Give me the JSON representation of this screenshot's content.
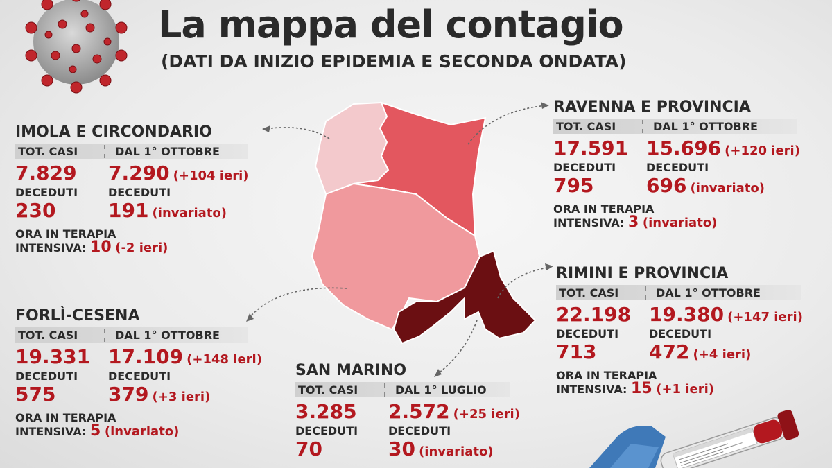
{
  "title": "La mappa del contagio",
  "subtitle": "(DATI DA INIZIO EPIDEMIA E SECONDA ONDATA)",
  "imola": {
    "name": "IMOLA E CIRCONDARIO",
    "h1": "TOT. CASI",
    "h2": "DAL 1° OTTOBRE",
    "tot": "7.829",
    "since": "7.290",
    "since_delta": "(+104 ieri)",
    "dec_l1": "DECEDUTI",
    "dec_l2": "DECEDUTI",
    "dec_tot": "230",
    "dec_since": "191",
    "dec_delta": "(invariato)",
    "ti_l1": "ORA IN TERAPIA",
    "ti_l2": "INTENSIVA:",
    "ti_v": "10",
    "ti_d": "(-2 ieri)"
  },
  "forli": {
    "name": "FORLÌ-CESENA",
    "h1": "TOT. CASI",
    "h2": "DAL 1° OTTOBRE",
    "tot": "19.331",
    "since": "17.109",
    "since_delta": "(+148 ieri)",
    "dec_l1": "DECEDUTI",
    "dec_l2": "DECEDUTI",
    "dec_tot": "575",
    "dec_since": "379",
    "dec_delta": "(+3 ieri)",
    "ti_l1": "ORA IN TERAPIA",
    "ti_l2": "INTENSIVA:",
    "ti_v": "5",
    "ti_d": "(invariato)"
  },
  "sanmarino": {
    "name": "SAN MARINO",
    "h1": "TOT. CASI",
    "h2": "DAL 1° LUGLIO",
    "tot": "3.285",
    "since": "2.572",
    "since_delta": "(+25 ieri)",
    "dec_l1": "DECEDUTI",
    "dec_l2": "DECEDUTI",
    "dec_tot": "70",
    "dec_since": "30",
    "dec_delta": "(invariato)"
  },
  "ravenna": {
    "name": "RAVENNA E PROVINCIA",
    "h1": "TOT. CASI",
    "h2": "DAL 1° OTTOBRE",
    "tot": "17.591",
    "since": "15.696",
    "since_delta": "(+120 ieri)",
    "dec_l1": "DECEDUTI",
    "dec_l2": "DECEDUTI",
    "dec_tot": "795",
    "dec_since": "696",
    "dec_delta": "(invariato)",
    "ti_l1": "ORA IN TERAPIA",
    "ti_l2": "INTENSIVA:",
    "ti_v": "3",
    "ti_d": "(invariato)"
  },
  "rimini": {
    "name": "RIMINI E PROVINCIA",
    "h1": "TOT. CASI",
    "h2": "DAL 1° OTTOBRE",
    "tot": "22.198",
    "since": "19.380",
    "since_delta": "(+147 ieri)",
    "dec_l1": "DECEDUTI",
    "dec_l2": "DECEDUTI",
    "dec_tot": "713",
    "dec_since": "472",
    "dec_delta": "(+4 ieri)",
    "ti_l1": "ORA IN TERAPIA",
    "ti_l2": "INTENSIVA:",
    "ti_v": "15",
    "ti_d": "(+1 ieri)"
  },
  "colors": {
    "accent": "#b3181f",
    "imola_area": "#f3c9cc",
    "ravenna_area": "#e3575f",
    "forli_area": "#f0999d",
    "rimini_area": "#6b0f12"
  },
  "icons": {
    "virus": "coronavirus-icon",
    "tube": "blood-sample-tube-icon"
  }
}
